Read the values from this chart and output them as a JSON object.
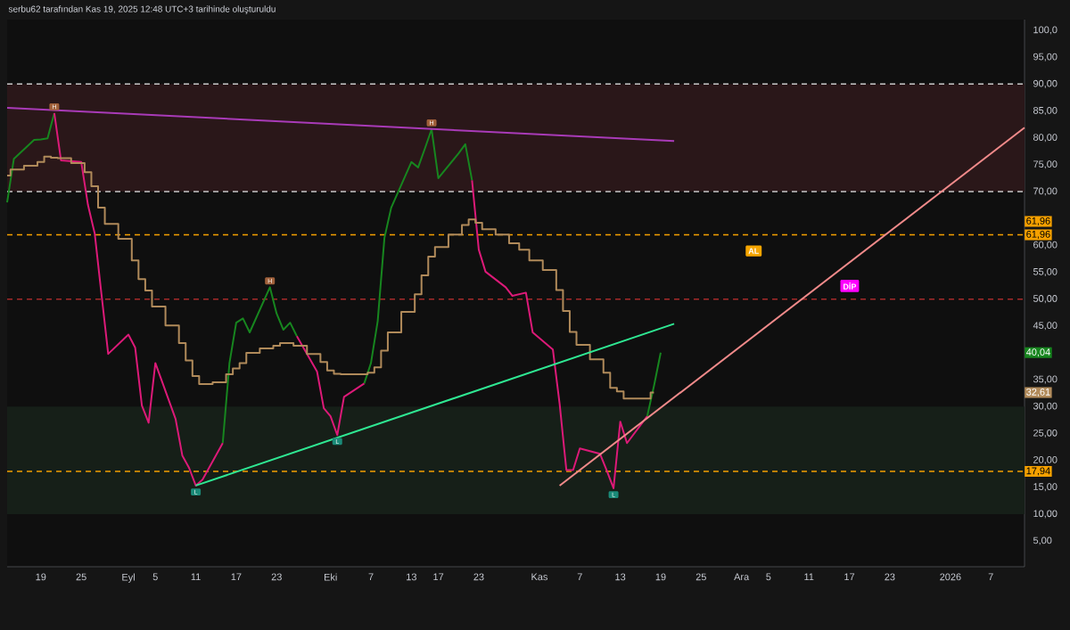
{
  "chart_data": {
    "type": "line",
    "title": "serbu62 tarafından Kas 19, 2025 12:48 UTC+3 tarihinde oluşturuldu",
    "x": [
      "2025-08-14",
      "2025-08-15",
      "2025-08-18",
      "2025-08-19",
      "2025-08-20",
      "2025-08-21",
      "2025-08-22",
      "2025-08-25",
      "2025-08-26",
      "2025-08-27",
      "2025-08-28",
      "2025-08-29",
      "2025-09-01",
      "2025-09-02",
      "2025-09-03",
      "2025-09-04",
      "2025-09-05",
      "2025-09-08",
      "2025-09-09",
      "2025-09-10",
      "2025-09-11",
      "2025-09-12",
      "2025-09-15",
      "2025-09-16",
      "2025-09-17",
      "2025-09-18",
      "2025-09-19",
      "2025-09-22",
      "2025-09-23",
      "2025-09-24",
      "2025-09-25",
      "2025-09-26",
      "2025-09-29",
      "2025-09-30",
      "2025-10-01",
      "2025-10-02",
      "2025-10-03",
      "2025-10-06",
      "2025-10-07",
      "2025-10-08",
      "2025-10-09",
      "2025-10-10",
      "2025-10-13",
      "2025-10-14",
      "2025-10-15",
      "2025-10-16",
      "2025-10-17",
      "2025-10-20",
      "2025-10-21",
      "2025-10-22",
      "2025-10-23",
      "2025-10-24",
      "2025-10-27",
      "2025-10-28",
      "2025-10-30",
      "2025-10-31",
      "2025-11-03",
      "2025-11-04",
      "2025-11-05",
      "2025-11-06",
      "2025-11-07",
      "2025-11-10",
      "2025-11-11",
      "2025-11-12",
      "2025-11-13",
      "2025-11-14",
      "2025-11-17",
      "2025-11-18",
      "2025-11-19"
    ],
    "series": [
      {
        "color": "#17861f",
        "values": [
          68.0,
          76.1,
          79.6,
          79.7,
          79.9,
          84.6,
          null,
          null,
          null,
          null,
          null,
          null,
          null,
          null,
          null,
          null,
          null,
          null,
          null,
          null,
          null,
          null,
          23.2,
          38.1,
          45.6,
          46.4,
          43.8,
          52.2,
          47.3,
          44.3,
          45.6,
          43.1,
          null,
          null,
          null,
          null,
          null,
          34.3,
          38.1,
          45.9,
          61.4,
          67.0,
          75.5,
          74.5,
          78.0,
          81.6,
          72.5,
          77.1,
          78.8,
          72.1,
          null,
          null,
          null,
          null,
          null,
          null,
          null,
          null,
          null,
          null,
          null,
          null,
          null,
          null,
          null,
          null,
          28.2,
          33.8,
          40.04
        ]
      },
      {
        "color": "#dc1a78",
        "values": [
          null,
          null,
          null,
          null,
          null,
          84.6,
          75.8,
          75.5,
          67.5,
          62.2,
          50.9,
          39.8,
          43.4,
          41.0,
          30.2,
          27.0,
          38.1,
          27.7,
          20.9,
          18.6,
          15.3,
          16.4,
          23.2,
          null,
          null,
          null,
          null,
          null,
          null,
          null,
          null,
          43.1,
          36.5,
          29.7,
          28.2,
          24.7,
          31.8,
          34.3,
          null,
          null,
          null,
          null,
          null,
          null,
          null,
          null,
          null,
          null,
          null,
          72.1,
          59.2,
          55.1,
          52.2,
          50.6,
          51.2,
          43.8,
          40.6,
          30.5,
          18.2,
          18.2,
          22.2,
          21.2,
          18.1,
          14.8,
          27.2,
          23.2,
          28.2,
          null,
          null
        ]
      },
      {
        "type": "step",
        "color": "#b08a5a",
        "values": [
          73.0,
          74.1,
          74.8,
          75.5,
          76.5,
          76.3,
          76.2,
          75.3,
          73.6,
          71.0,
          67.0,
          64.0,
          61.2,
          57.2,
          53.7,
          51.6,
          48.6,
          45.1,
          41.8,
          38.6,
          35.7,
          34.2,
          34.5,
          36.0,
          37.1,
          38.1,
          40.0,
          40.8,
          41.3,
          41.8,
          41.8,
          41.3,
          39.8,
          38.3,
          36.7,
          36.1,
          36.0,
          36.0,
          36.3,
          37.3,
          40.4,
          43.8,
          47.6,
          50.9,
          54.4,
          57.9,
          59.7,
          62.0,
          63.8,
          64.8,
          64.2,
          63.0,
          62.0,
          60.4,
          59.2,
          57.2,
          55.4,
          51.7,
          47.8,
          43.9,
          41.5,
          38.8,
          36.3,
          33.5,
          32.8,
          31.5,
          31.5,
          32.61,
          null
        ]
      },
      {
        "color": "#a93bb8",
        "x": [
          "2025-08-14",
          "2025-11-21"
        ],
        "values": [
          85.6,
          79.4
        ]
      },
      {
        "color": "#2fe893",
        "x": [
          "2025-09-11",
          "2025-11-21"
        ],
        "values": [
          15.3,
          45.4
        ]
      },
      {
        "color": "#f08a8a",
        "x": [
          "2025-11-04",
          "2026-01-12"
        ],
        "values": [
          15.3,
          81.9
        ]
      }
    ],
    "xlim": [
      "2025-08-14",
      "2026-01-12"
    ],
    "ylim": [
      0.2,
      102
    ],
    "xticks": [
      {
        "value": "2025-08-19",
        "label": "19"
      },
      {
        "value": "2025-08-25",
        "label": "25"
      },
      {
        "value": "2025-09-01",
        "label": "Eyl"
      },
      {
        "value": "2025-09-05",
        "label": "5"
      },
      {
        "value": "2025-09-11",
        "label": "11"
      },
      {
        "value": "2025-09-17",
        "label": "17"
      },
      {
        "value": "2025-09-23",
        "label": "23"
      },
      {
        "value": "2025-10-01",
        "label": "Eki"
      },
      {
        "value": "2025-10-07",
        "label": "7"
      },
      {
        "value": "2025-10-13",
        "label": "13"
      },
      {
        "value": "2025-10-17",
        "label": "17"
      },
      {
        "value": "2025-10-23",
        "label": "23"
      },
      {
        "value": "2025-11-01",
        "label": "Kas"
      },
      {
        "value": "2025-11-07",
        "label": "7"
      },
      {
        "value": "2025-11-13",
        "label": "13"
      },
      {
        "value": "2025-11-19",
        "label": "19"
      },
      {
        "value": "2025-11-25",
        "label": "25"
      },
      {
        "value": "2025-12-01",
        "label": "Ara"
      },
      {
        "value": "2025-12-05",
        "label": "5"
      },
      {
        "value": "2025-12-11",
        "label": "11"
      },
      {
        "value": "2025-12-17",
        "label": "17"
      },
      {
        "value": "2025-12-23",
        "label": "23"
      },
      {
        "value": "2026-01-01",
        "label": "2026"
      },
      {
        "value": "2026-01-07",
        "label": "7"
      }
    ],
    "yticks": [
      {
        "value": 5,
        "label": "5,00"
      },
      {
        "value": 10,
        "label": "10,00"
      },
      {
        "value": 15,
        "label": "15,00"
      },
      {
        "value": 20,
        "label": "20,00"
      },
      {
        "value": 25,
        "label": "25,00"
      },
      {
        "value": 30,
        "label": "30,00"
      },
      {
        "value": 35,
        "label": "35,00"
      },
      {
        "value": 45,
        "label": "45,00"
      },
      {
        "value": 50,
        "label": "50,00"
      },
      {
        "value": 55,
        "label": "55,00"
      },
      {
        "value": 60,
        "label": "60,00"
      },
      {
        "value": 70,
        "label": "70,00"
      },
      {
        "value": 75,
        "label": "75,00"
      },
      {
        "value": 80,
        "label": "80,00"
      },
      {
        "value": 85,
        "label": "85,00"
      },
      {
        "value": 90,
        "label": "90,00"
      },
      {
        "value": 95,
        "label": "95,00"
      },
      {
        "value": 100,
        "label": "100,0"
      }
    ],
    "bands": [
      {
        "axis": "y",
        "from": 70,
        "to": 90,
        "color": "#2a1719"
      },
      {
        "axis": "y",
        "from": 10,
        "to": 30,
        "color": "#161f18"
      }
    ],
    "ref_lines": [
      {
        "axis": "y",
        "value": 90,
        "color": "#c8c8c8",
        "line_style": "dashed"
      },
      {
        "axis": "y",
        "value": 70,
        "color": "#c8c8c8",
        "line_style": "dashed"
      },
      {
        "axis": "y",
        "value": 50,
        "color": "#a52a2a",
        "line_style": "dashed"
      },
      {
        "axis": "y",
        "value": 61.96,
        "label": "61,96",
        "color": "#f5a000",
        "line_style": "dashed"
      },
      {
        "axis": "y",
        "value": 17.94,
        "label": "17,94",
        "color": "#f5a000",
        "line_style": "dashed"
      }
    ],
    "annotations": [
      "AL",
      "DİP",
      "40,04",
      "32,61",
      {
        "text": "61,96",
        "x": "2026-01-12",
        "y": 61.96
      },
      {
        "text": "H",
        "x": "2025-08-21",
        "y": 84.6
      },
      {
        "text": "H",
        "x": "2025-09-22",
        "y": 52.2
      },
      {
        "text": "H",
        "x": "2025-10-16",
        "y": 81.6
      },
      {
        "text": "L",
        "x": "2025-09-11",
        "y": 15.3
      },
      {
        "text": "L",
        "x": "2025-10-02",
        "y": 24.7
      },
      {
        "text": "L",
        "x": "2025-11-12",
        "y": 14.8
      }
    ]
  }
}
